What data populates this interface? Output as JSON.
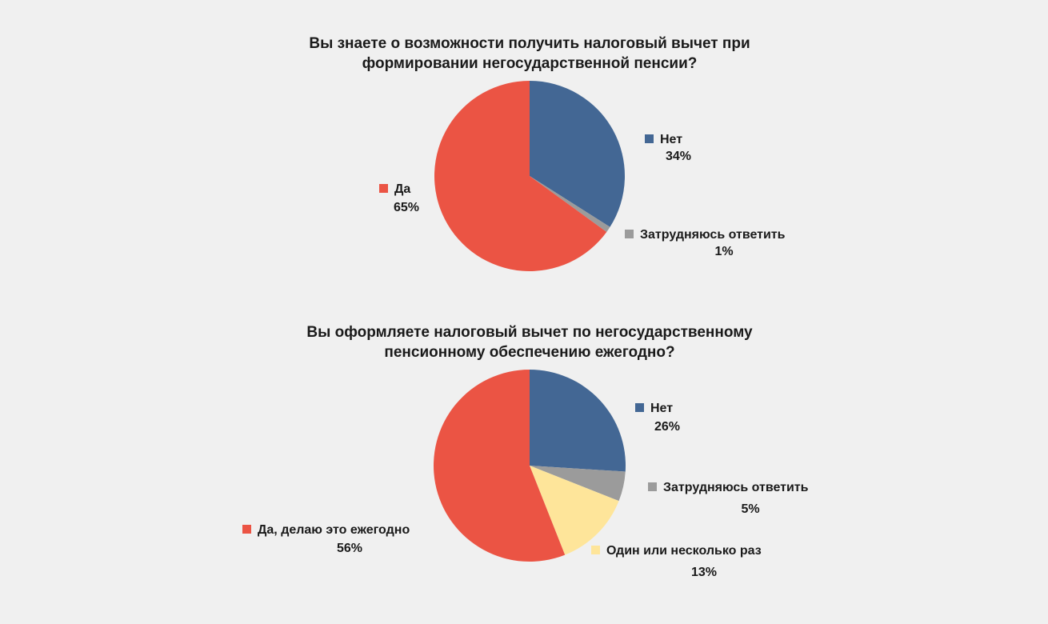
{
  "chart_data": [
    {
      "type": "pie",
      "title": "Вы знаете о возможности получить налоговый вычет при формировании негосударственной пенсии?",
      "title_lines": [
        "Вы знаете о возможности получить налоговый вычет при",
        "формировании негосударственной пенсии?"
      ],
      "slices": [
        {
          "label": "Нет",
          "value": 34,
          "display": "34%",
          "color": "#436794"
        },
        {
          "label": "Затрудняюсь ответить",
          "value": 1,
          "display": "1%",
          "color": "#9b9b9b"
        },
        {
          "label": "Да",
          "value": 65,
          "display": "65%",
          "color": "#EB5444"
        }
      ]
    },
    {
      "type": "pie",
      "title": "Вы оформляете налоговый вычет по негосударственному пенсионному обеспечению ежегодно?",
      "title_lines": [
        "Вы оформляете налоговый вычет по негосударственному",
        "пенсионному обеспечению ежегодно?"
      ],
      "slices": [
        {
          "label": "Нет",
          "value": 26,
          "display": "26%",
          "color": "#436794"
        },
        {
          "label": "Затрудняюсь ответить",
          "value": 5,
          "display": "5%",
          "color": "#9b9b9b"
        },
        {
          "label": "Один или несколько раз",
          "value": 13,
          "display": "13%",
          "color": "#FEE59A"
        },
        {
          "label": "Да, делаю это ежегодно",
          "value": 56,
          "display": "56%",
          "color": "#EB5444"
        }
      ]
    }
  ]
}
